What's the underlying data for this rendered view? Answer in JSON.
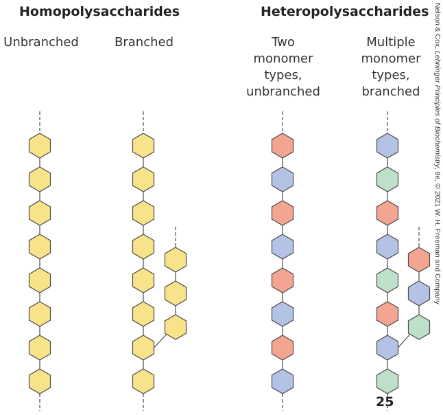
{
  "headings": {
    "homo": "Homopolysaccharides",
    "hetero": "Heteropolysaccharides"
  },
  "columns": [
    {
      "label_lines": [
        "Unbranched"
      ]
    },
    {
      "label_lines": [
        "Branched"
      ]
    },
    {
      "label_lines": [
        "Two",
        "monomer",
        "types,",
        "unbranched"
      ]
    },
    {
      "label_lines": [
        "Multiple",
        "monomer",
        "types,",
        "branched"
      ]
    }
  ],
  "chains": {
    "col1_main": [
      "yellow",
      "yellow",
      "yellow",
      "yellow",
      "yellow",
      "yellow",
      "yellow",
      "yellow"
    ],
    "col2_main": [
      "yellow",
      "yellow",
      "yellow",
      "yellow",
      "yellow",
      "yellow",
      "yellow",
      "yellow"
    ],
    "col2_branch": [
      "yellow",
      "yellow",
      "yellow"
    ],
    "col3_main": [
      "red",
      "blue",
      "red",
      "blue",
      "red",
      "blue",
      "red",
      "blue"
    ],
    "col4_main": [
      "blue",
      "green",
      "red",
      "blue",
      "green",
      "red",
      "blue",
      "green"
    ],
    "col4_branch": [
      "red",
      "blue",
      "green"
    ]
  },
  "colors": {
    "yellow": "#f9e38a",
    "red": "#f4a591",
    "blue": "#b4c2e6",
    "green": "#bfe0c8",
    "outline": "#4a4a4a"
  },
  "credit_parts": {
    "before": "Nelson & Cox, ",
    "book": "Lehninger Principles of Biochemistry",
    "after": ", 8e, © 2021 W. H. Freeman and Company"
  },
  "page_number": "25"
}
